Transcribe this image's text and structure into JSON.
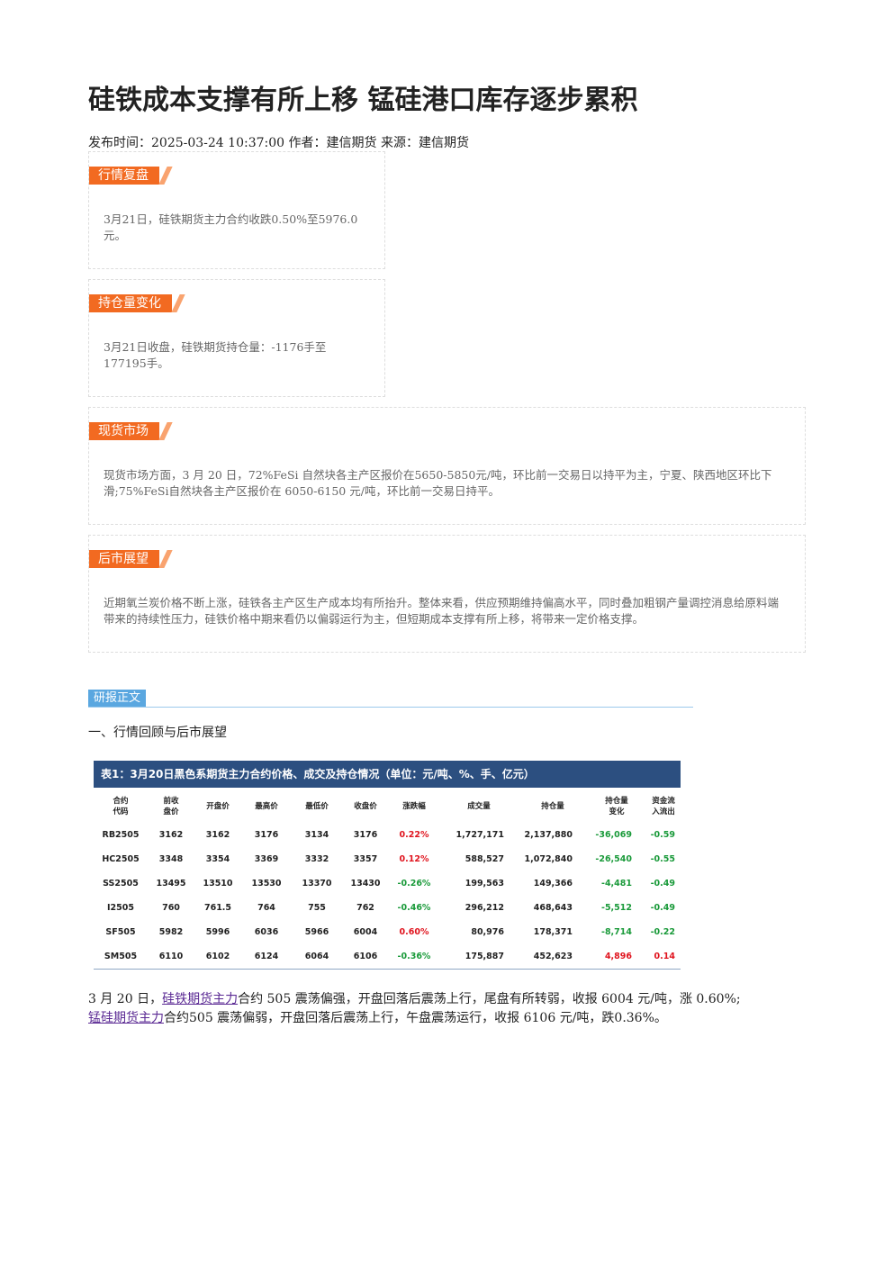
{
  "header": {
    "title": "硅铁成本支撑有所上移 锰硅港口库存逐步累积",
    "meta": "发布时间：2025-03-24 10:37:00 作者：建信期货 来源：建信期货"
  },
  "sections": [
    {
      "tag": "行情复盘",
      "text": "3月21日，硅铁期货主力合约收跌0.50%至5976.0元。"
    },
    {
      "tag": "持仓量变化",
      "text": "3月21日收盘，硅铁期货持仓量：-1176手至177195手。"
    },
    {
      "tag": "现货市场",
      "text": "现货市场方面，3 月 20 日，72%FeSi 自然块各主产区报价在5650-5850元/吨，环比前一交易日以持平为主，宁夏、陕西地区环比下滑;75%FeSi自然块各主产区报价在 6050-6150 元/吨，环比前一交易日持平。"
    },
    {
      "tag": "后市展望",
      "text": "近期氧兰炭价格不断上涨，硅铁各主产区生产成本均有所抬升。整体来看，供应预期维持偏高水平，同时叠加粗钢产量调控消息给原料端带来的持续性压力，硅铁价格中期来看仍以偏弱运行为主，但短期成本支撑有所上移，将带来一定价格支撑。"
    }
  ],
  "body": {
    "tag": "研报正文",
    "heading": "一、行情回顾与后市展望"
  },
  "table": {
    "caption": "表1：3月20日黑色系期货主力合约价格、成交及持仓情况（单位：元/吨、%、手、亿元）",
    "columns": [
      "合约\n代码",
      "前收\n盘价",
      "开盘价",
      "最高价",
      "最低价",
      "收盘价",
      "涨跌幅",
      "成交量",
      "持仓量",
      "持仓量\n变化",
      "资金流\n入流出"
    ],
    "rows": [
      [
        "RB2505",
        "3162",
        "3162",
        "3176",
        "3134",
        "3176",
        "0.22%",
        "1,727,171",
        "2,137,880",
        "-36,069",
        "-0.59"
      ],
      [
        "HC2505",
        "3348",
        "3354",
        "3369",
        "3332",
        "3357",
        "0.12%",
        "588,527",
        "1,072,840",
        "-26,540",
        "-0.55"
      ],
      [
        "SS2505",
        "13495",
        "13510",
        "13530",
        "13370",
        "13430",
        "-0.26%",
        "199,563",
        "149,366",
        "-4,481",
        "-0.49"
      ],
      [
        "I2505",
        "760",
        "761.5",
        "764",
        "755",
        "762",
        "-0.46%",
        "296,212",
        "468,643",
        "-5,512",
        "-0.49"
      ],
      [
        "SF505",
        "5982",
        "5996",
        "6036",
        "5966",
        "6004",
        "0.60%",
        "80,976",
        "178,371",
        "-8,714",
        "-0.22"
      ],
      [
        "SM505",
        "6110",
        "6102",
        "6124",
        "6064",
        "6106",
        "-0.36%",
        "175,887",
        "452,623",
        "4,896",
        "0.14"
      ]
    ]
  },
  "paragraph": {
    "parts": [
      "3 月 20 日，",
      "硅铁期货主力",
      "合约 505 震荡偏强，开盘回落后震荡上行，尾盘有所转弱，收报 6004 元/吨，涨 0.60%;",
      "锰硅期货主力",
      "合约505 震荡偏弱，开盘回落后震荡上行，午盘震荡运行，收报 6106 元/吨，跌0.36%。"
    ]
  }
}
